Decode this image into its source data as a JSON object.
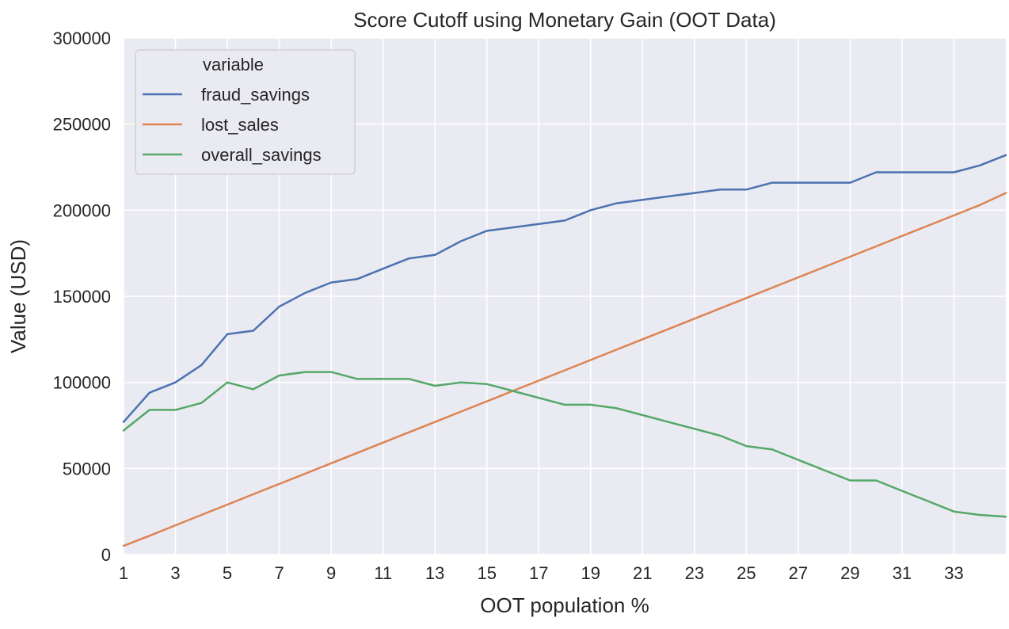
{
  "chart_data": {
    "type": "line",
    "title": "Score Cutoff using Monetary Gain (OOT Data)",
    "xlabel": "OOT population %",
    "ylabel": "Value (USD)",
    "xlim": [
      1,
      35
    ],
    "ylim": [
      0,
      300000
    ],
    "x_ticks": [
      "1",
      "3",
      "5",
      "7",
      "9",
      "11",
      "13",
      "15",
      "17",
      "19",
      "21",
      "23",
      "25",
      "27",
      "29",
      "31",
      "33"
    ],
    "y_ticks": [
      "0",
      "50000",
      "100000",
      "150000",
      "200000",
      "250000",
      "300000"
    ],
    "grid": true,
    "legend": {
      "title": "variable",
      "placement": "top-left"
    },
    "x": [
      1,
      2,
      3,
      4,
      5,
      6,
      7,
      8,
      9,
      10,
      11,
      12,
      13,
      14,
      15,
      16,
      17,
      18,
      19,
      20,
      21,
      22,
      23,
      24,
      25,
      26,
      27,
      28,
      29,
      30,
      31,
      32,
      33,
      34,
      35
    ],
    "series": [
      {
        "name": "fraud_savings",
        "color": "#4c72b0",
        "values": [
          77000,
          94000,
          100000,
          110000,
          128000,
          130000,
          144000,
          152000,
          158000,
          160000,
          166000,
          172000,
          174000,
          182000,
          188000,
          190000,
          192000,
          194000,
          200000,
          204000,
          206000,
          208000,
          210000,
          212000,
          212000,
          216000,
          216000,
          216000,
          216000,
          222000,
          222000,
          222000,
          222000,
          226000,
          232000
        ]
      },
      {
        "name": "lost_sales",
        "color": "#dd8452",
        "values": [
          5000,
          10900,
          17000,
          23000,
          29000,
          35000,
          41000,
          47000,
          53000,
          59000,
          65000,
          71000,
          77000,
          83000,
          89000,
          95000,
          101000,
          107000,
          113000,
          119000,
          125000,
          131000,
          137000,
          143000,
          149000,
          155000,
          161000,
          167000,
          173000,
          179000,
          185000,
          191000,
          197000,
          203000,
          210000
        ]
      },
      {
        "name": "overall_savings",
        "color": "#55a868",
        "values": [
          72000,
          84000,
          84000,
          88000,
          100000,
          96000,
          104000,
          106000,
          106000,
          102000,
          102000,
          102000,
          98000,
          100000,
          99000,
          95000,
          91000,
          87000,
          87000,
          85000,
          81000,
          77000,
          73000,
          69000,
          63000,
          61000,
          55000,
          49000,
          43000,
          43000,
          37000,
          31000,
          25000,
          23000,
          22000
        ]
      }
    ]
  }
}
